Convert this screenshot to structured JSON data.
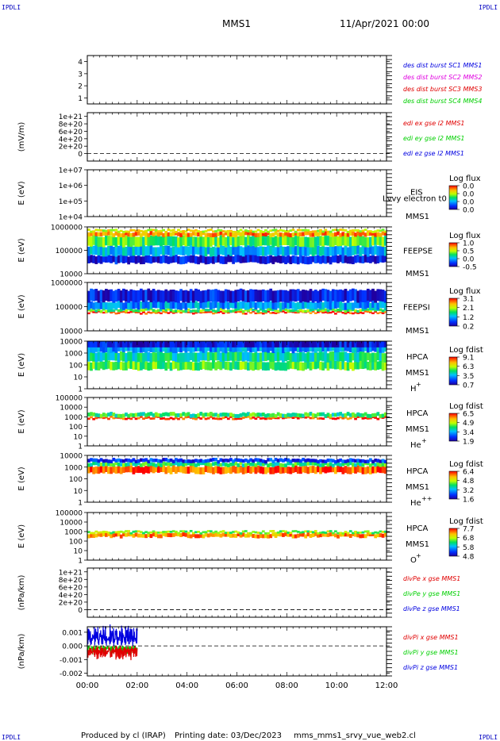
{
  "header": {
    "corner_label": "IPDLI",
    "mission": "MMS1",
    "date": "11/Apr/2021 00:00"
  },
  "footer": {
    "produced_by": "Produced by cl (IRAP)",
    "printing_date": "Printing date: 03/Dec/2023",
    "script": "mms_mms1_srvy_vue_web2.cl"
  },
  "x_axis": {
    "ticks": [
      "00:00",
      "02:00",
      "04:00",
      "06:00",
      "08:00",
      "10:00",
      "12:00"
    ],
    "range_hours": [
      0,
      12
    ]
  },
  "colors": {
    "red": "#e00000",
    "green": "#00d000",
    "blue": "#0000e0",
    "magenta": "#e000e0",
    "orange": "#ff6600"
  },
  "chart_data": [
    {
      "type": "line",
      "panel": "des_dist_burst",
      "ylabel": "",
      "ylim": [
        0.5,
        4.5
      ],
      "yticks": [
        "1",
        "2",
        "3",
        "4"
      ],
      "legend": [
        {
          "label": "des dist burst SC1 MMS1",
          "color": "#0000e0"
        },
        {
          "label": "des dist burst SC2 MMS2",
          "color": "#e000e0"
        },
        {
          "label": "des dist burst SC3 MMS3",
          "color": "#e00000"
        },
        {
          "label": "des dist burst SC4 MMS4",
          "color": "#00d000"
        }
      ],
      "series": []
    },
    {
      "type": "line",
      "panel": "edi_e_gse",
      "ylabel": "(mV/m)",
      "ylim": [
        -2e+20,
        1.1e+21
      ],
      "yticks": [
        "1e+21",
        "8e+20",
        "6e+20",
        "4e+20",
        "2e+20",
        "0"
      ],
      "legend": [
        {
          "label": "edi ex gse l2 MMS1",
          "color": "#e00000"
        },
        {
          "label": "edi ey gse l2 MMS1",
          "color": "#00d000"
        },
        {
          "label": "edi ez gse l2 MMS1",
          "color": "#0000e0"
        }
      ],
      "zero_line": true,
      "series": []
    },
    {
      "type": "heatmap",
      "panel": "EIS",
      "ylabel": "E (eV)",
      "yscale": "log",
      "ylim": [
        10000,
        10000000
      ],
      "yticks": [
        "1e+07",
        "1e+06",
        "1e+05",
        "1e+04"
      ],
      "labels": [
        "EIS",
        "Lvvy electron t0",
        "MMS1"
      ],
      "colorbar": {
        "title": "Log flux",
        "ticks": [
          "0.0",
          "0.0",
          "0.0",
          "0.0"
        ]
      }
    },
    {
      "type": "heatmap",
      "panel": "FEEPSE",
      "ylabel": "E (eV)",
      "yscale": "log",
      "ylim": [
        10000,
        1000000
      ],
      "yticks": [
        "1000000",
        "100000",
        "10000"
      ],
      "labels": [
        "FEEPSE",
        "MMS1"
      ],
      "colorbar": {
        "title": "Log flux",
        "ticks": [
          "1.0",
          "0.5",
          "0.0",
          "-0.5"
        ]
      },
      "bands": [
        {
          "from": 28000,
          "to": 60000,
          "level": 0.1
        },
        {
          "from": 60000,
          "to": 150000,
          "level": 0.35
        },
        {
          "from": 150000,
          "to": 400000,
          "level": 0.55
        },
        {
          "from": 400000,
          "to": 600000,
          "level": 0.85
        },
        {
          "from": 600000,
          "to": 750000,
          "level": 0.7
        }
      ],
      "x_extent_hours": [
        0,
        12
      ]
    },
    {
      "type": "heatmap",
      "panel": "FEEPSI",
      "ylabel": "E (eV)",
      "yscale": "log",
      "ylim": [
        10000,
        1000000
      ],
      "yticks": [
        "1000000",
        "100000",
        "10000"
      ],
      "labels": [
        "FEEPSI",
        "MMS1"
      ],
      "colorbar": {
        "title": "Log flux",
        "ticks": [
          "3.1",
          "2.1",
          "1.2",
          "0.2"
        ]
      },
      "bands": [
        {
          "from": 52000,
          "to": 62000,
          "level": 0.95
        },
        {
          "from": 62000,
          "to": 80000,
          "level": 0.55
        },
        {
          "from": 80000,
          "to": 160000,
          "level": 0.3
        },
        {
          "from": 160000,
          "to": 500000,
          "level": 0.1
        }
      ],
      "x_extent_hours": [
        0,
        12
      ]
    },
    {
      "type": "heatmap",
      "panel": "HPCA_H",
      "ylabel": "E (eV)",
      "yscale": "log",
      "ylim": [
        1,
        10000
      ],
      "yticks": [
        "10000",
        "1000",
        "100",
        "10",
        "1"
      ],
      "labels": [
        "HPCA",
        "MMS1",
        "H",
        "+"
      ],
      "colorbar": {
        "title": "Log fdist",
        "ticks": [
          "9.1",
          "6.3",
          "3.5",
          "0.7"
        ]
      },
      "bands": [
        {
          "from": 40,
          "to": 200,
          "level": 0.55
        },
        {
          "from": 200,
          "to": 1200,
          "level": 0.45
        },
        {
          "from": 1200,
          "to": 4500,
          "level": 0.3
        },
        {
          "from": 4500,
          "to": 15000,
          "level": 0.08
        }
      ],
      "x_extent_hours": [
        0,
        12
      ]
    },
    {
      "type": "heatmap",
      "panel": "HPCA_He",
      "ylabel": "E (eV)",
      "yscale": "log",
      "ylim": [
        1,
        100000
      ],
      "yticks": [
        "100000",
        "10000",
        "1000",
        "100",
        "10",
        "1"
      ],
      "labels": [
        "HPCA",
        "MMS1",
        "He",
        "+"
      ],
      "colorbar": {
        "title": "Log fdist",
        "ticks": [
          "6.5",
          "4.9",
          "3.4",
          "1.9"
        ]
      },
      "bands": [
        {
          "from": 600,
          "to": 1000,
          "level": 0.95
        },
        {
          "from": 1000,
          "to": 2500,
          "level": 0.5
        }
      ],
      "x_extent_hours": [
        0,
        12
      ]
    },
    {
      "type": "heatmap",
      "panel": "HPCA_He2",
      "ylabel": "E (eV)",
      "yscale": "log",
      "ylim": [
        1,
        10000
      ],
      "yticks": [
        "10000",
        "1000",
        "100",
        "10",
        "1"
      ],
      "labels": [
        "HPCA",
        "MMS1",
        "He",
        "++"
      ],
      "colorbar": {
        "title": "Log fdist",
        "ticks": [
          "6.4",
          "4.8",
          "3.2",
          "1.6"
        ]
      },
      "bands": [
        {
          "from": 300,
          "to": 1200,
          "level": 0.92
        },
        {
          "from": 1200,
          "to": 2500,
          "level": 0.5
        },
        {
          "from": 2500,
          "to": 5000,
          "level": 0.15
        }
      ],
      "x_extent_hours": [
        0,
        12
      ]
    },
    {
      "type": "heatmap",
      "panel": "HPCA_O",
      "ylabel": "E (eV)",
      "yscale": "log",
      "ylim": [
        1,
        100000
      ],
      "yticks": [
        "100000",
        "10000",
        "1000",
        "100",
        "10",
        "1"
      ],
      "labels": [
        "HPCA",
        "MMS1",
        "O",
        "+"
      ],
      "colorbar": {
        "title": "Log fdist",
        "ticks": [
          "7.7",
          "6.8",
          "5.8",
          "4.8"
        ]
      },
      "bands": [
        {
          "from": 250,
          "to": 650,
          "level": 0.85
        },
        {
          "from": 650,
          "to": 1100,
          "level": 0.6
        }
      ],
      "x_extent_hours": [
        0,
        12
      ]
    },
    {
      "type": "line",
      "panel": "divPe",
      "ylabel": "(nPa/km)",
      "ylim": [
        -2e+20,
        1.1e+21
      ],
      "yticks": [
        "1e+21",
        "8e+20",
        "6e+20",
        "4e+20",
        "2e+20",
        "0"
      ],
      "legend": [
        {
          "label": "divPe x gse MMS1",
          "color": "#e00000"
        },
        {
          "label": "divPe y gse MMS1",
          "color": "#00d000"
        },
        {
          "label": "divPe z gse MMS1",
          "color": "#0000e0"
        }
      ],
      "zero_line": true,
      "series": []
    },
    {
      "type": "line",
      "panel": "divPi",
      "ylabel": "(nPa/km)",
      "ylim": [
        -0.0022,
        0.0014
      ],
      "yticks": [
        "0.001",
        "0.000",
        "-0.001",
        "-0.002"
      ],
      "legend": [
        {
          "label": "divPi x gse MMS1",
          "color": "#e00000"
        },
        {
          "label": "divPi y gse MMS1",
          "color": "#00d000"
        },
        {
          "label": "divPi z gse MMS1",
          "color": "#0000e0"
        }
      ],
      "zero_line": true,
      "data_extent_hours": [
        0,
        2
      ]
    }
  ]
}
